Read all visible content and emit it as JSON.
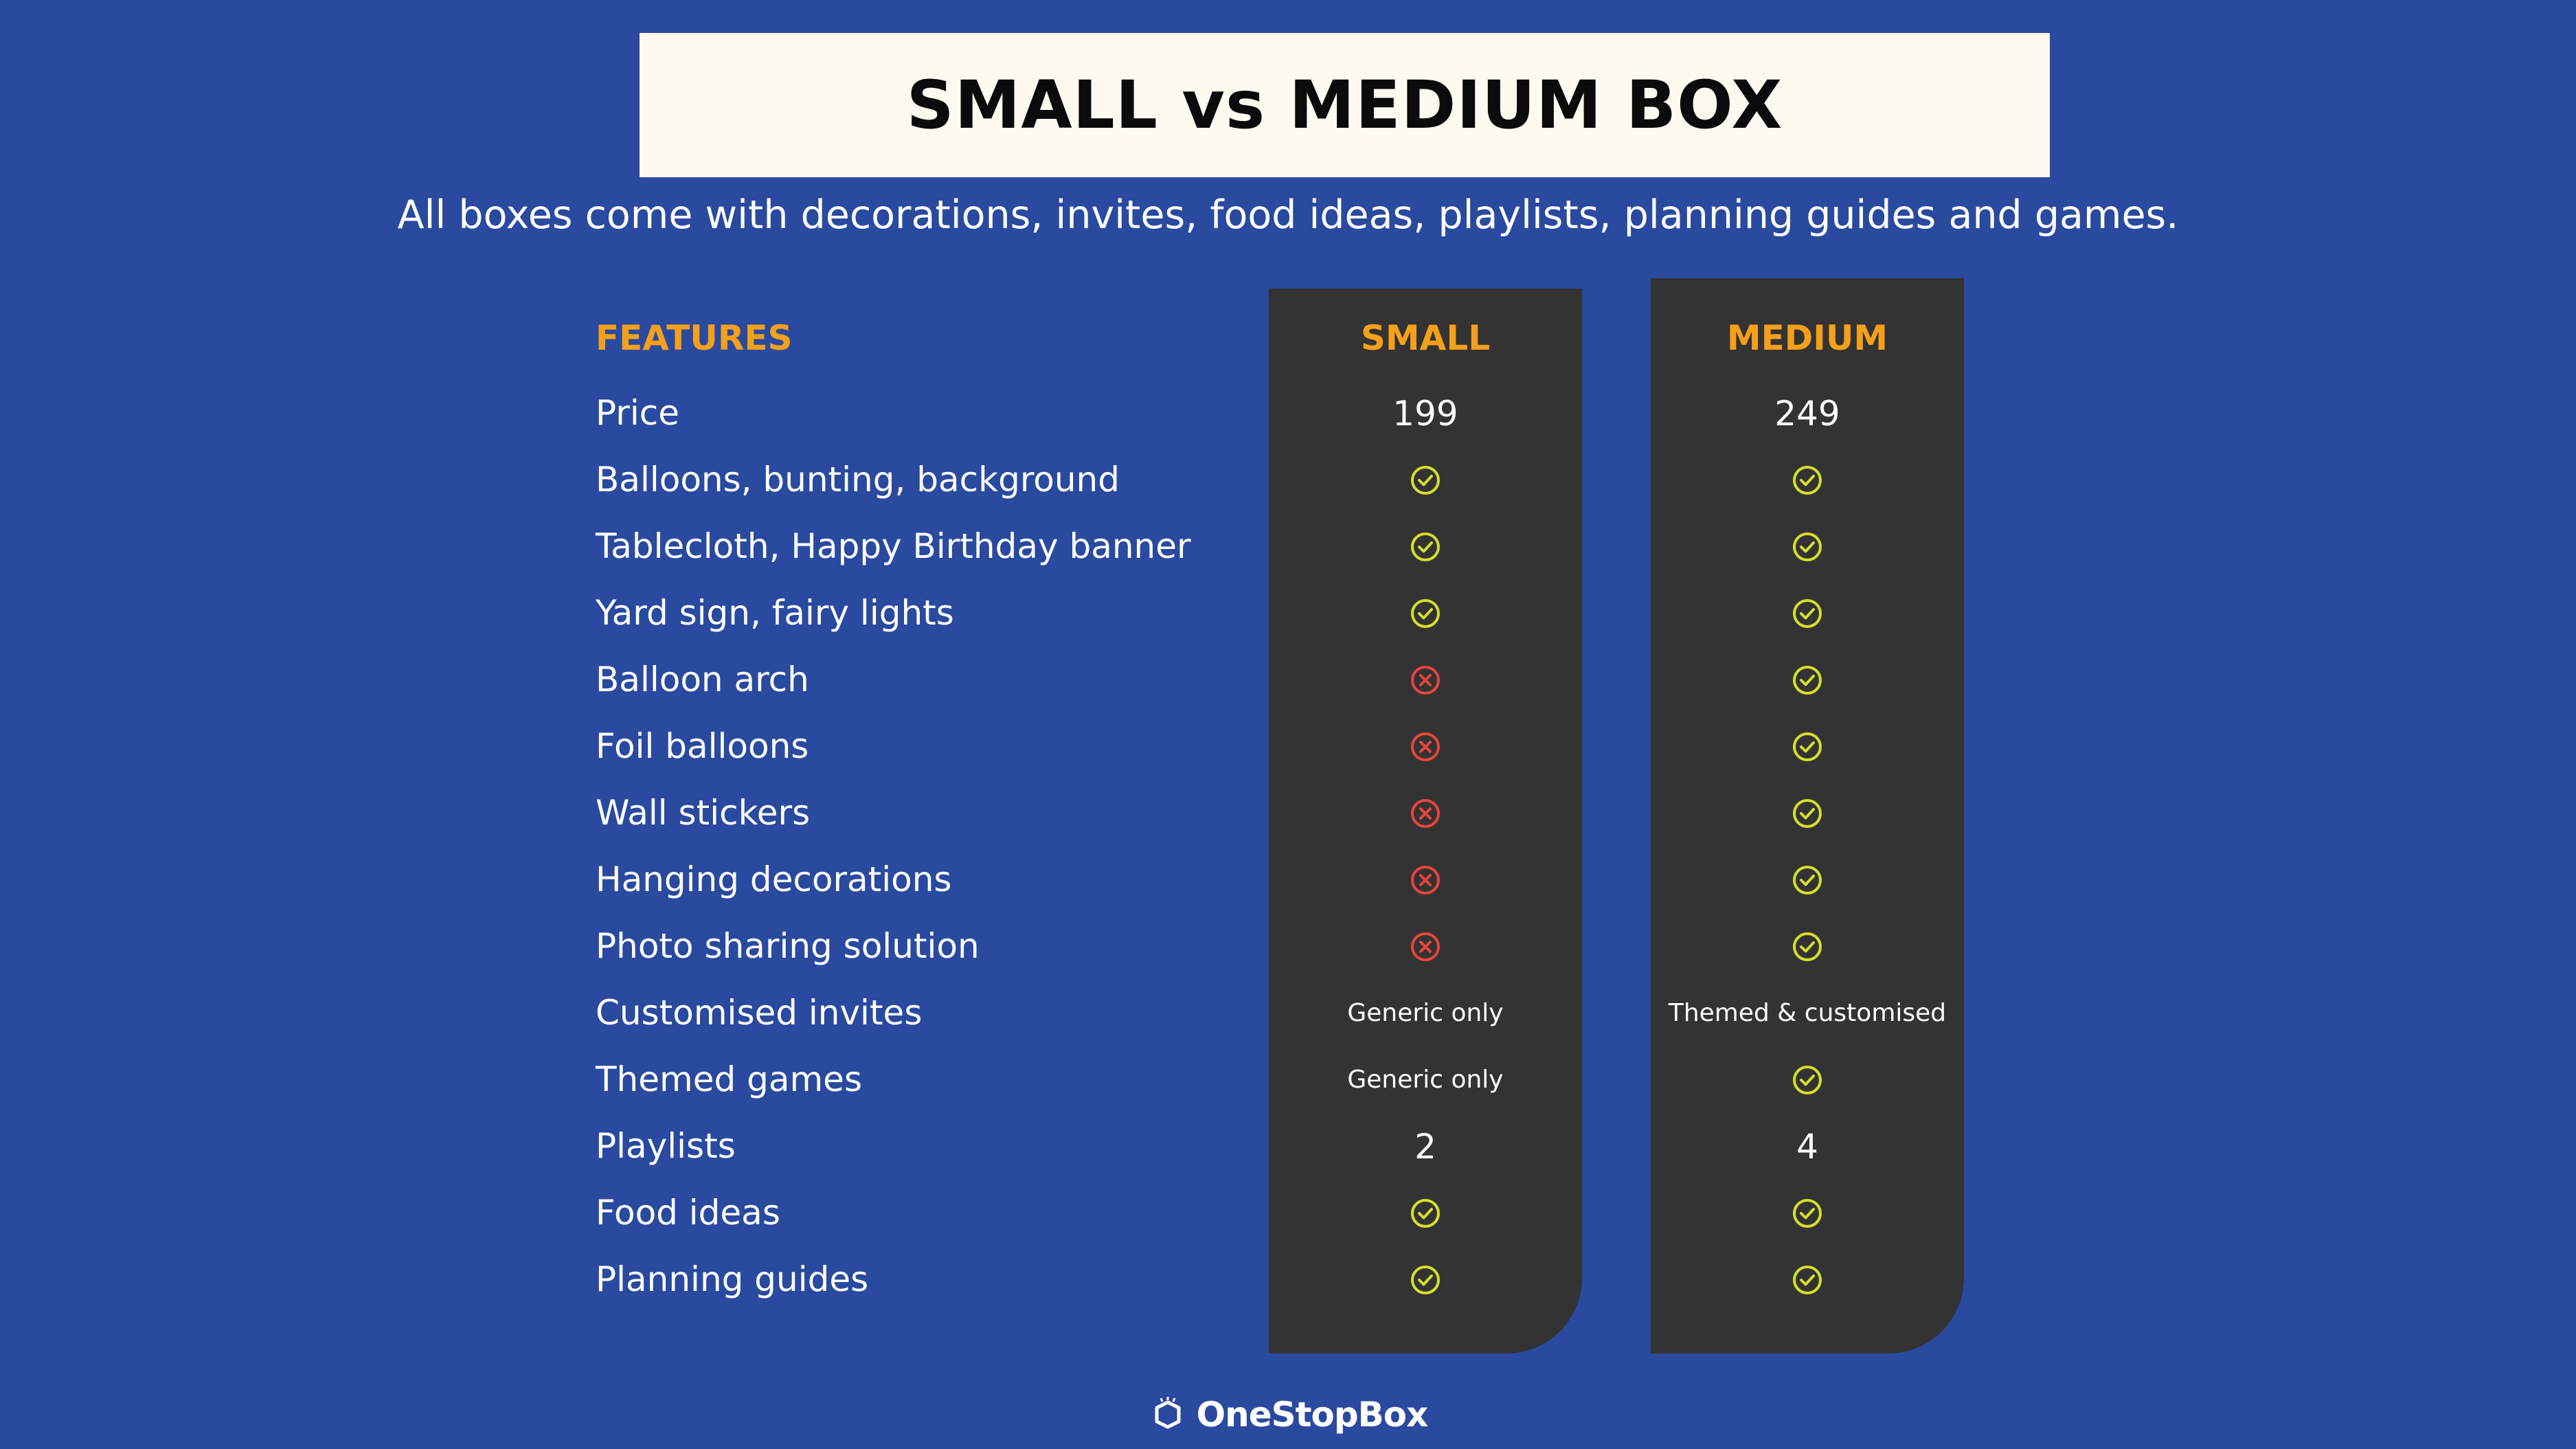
{
  "title": "SMALL vs MEDIUM BOX",
  "subtitle": "All boxes come with decorations, invites, food ideas, playlists, planning guides and games.",
  "headers": {
    "features": "FEATURES",
    "small": "SMALL",
    "medium": "MEDIUM"
  },
  "rows": [
    {
      "feature": "Price",
      "small": {
        "type": "text",
        "value": "199"
      },
      "medium": {
        "type": "text",
        "value": "249"
      }
    },
    {
      "feature": "Balloons, bunting, background",
      "small": {
        "type": "check"
      },
      "medium": {
        "type": "check"
      }
    },
    {
      "feature": "Tablecloth, Happy Birthday banner",
      "small": {
        "type": "check"
      },
      "medium": {
        "type": "check"
      }
    },
    {
      "feature": "Yard sign, fairy lights",
      "small": {
        "type": "check"
      },
      "medium": {
        "type": "check"
      }
    },
    {
      "feature": "Balloon arch",
      "small": {
        "type": "cross"
      },
      "medium": {
        "type": "check"
      }
    },
    {
      "feature": "Foil balloons",
      "small": {
        "type": "cross"
      },
      "medium": {
        "type": "check"
      }
    },
    {
      "feature": "Wall stickers",
      "small": {
        "type": "cross"
      },
      "medium": {
        "type": "check"
      }
    },
    {
      "feature": "Hanging decorations",
      "small": {
        "type": "cross"
      },
      "medium": {
        "type": "check"
      }
    },
    {
      "feature": "Photo sharing solution",
      "small": {
        "type": "cross"
      },
      "medium": {
        "type": "check"
      }
    },
    {
      "feature": "Customised invites",
      "small": {
        "type": "note",
        "value": "Generic only"
      },
      "medium": {
        "type": "note",
        "value": "Themed & customised"
      }
    },
    {
      "feature": "Themed games",
      "small": {
        "type": "note",
        "value": "Generic only"
      },
      "medium": {
        "type": "check"
      }
    },
    {
      "feature": "Playlists",
      "small": {
        "type": "text",
        "value": "2"
      },
      "medium": {
        "type": "text",
        "value": "4"
      }
    },
    {
      "feature": "Food ideas",
      "small": {
        "type": "check"
      },
      "medium": {
        "type": "check"
      }
    },
    {
      "feature": "Planning guides",
      "small": {
        "type": "check"
      },
      "medium": {
        "type": "check"
      }
    }
  ],
  "brand": {
    "name": "OneStopBox"
  },
  "colors": {
    "background": "#2a4aa0",
    "panel": "#333333",
    "header": "#f5a01a",
    "check": "#d4e02a",
    "cross": "#e8453c",
    "title_box": "#fefaf0"
  }
}
